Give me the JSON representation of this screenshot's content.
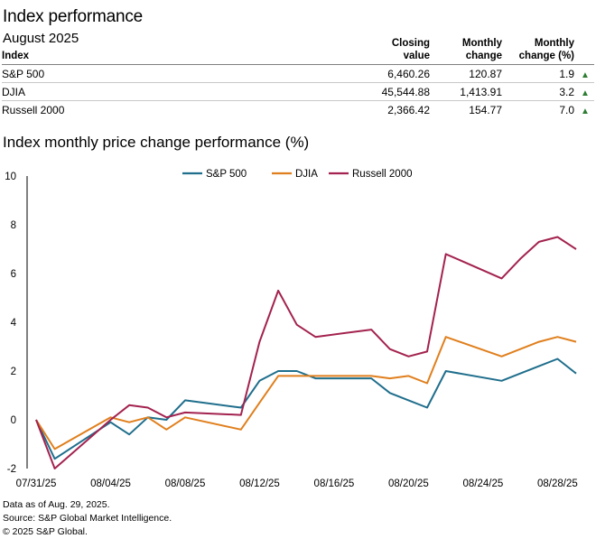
{
  "header": {
    "title": "Index performance",
    "subtitle": "August 2025"
  },
  "table": {
    "columns": [
      "Index",
      "Closing value",
      "Monthly change",
      "Monthly change (%)"
    ],
    "column_lines": [
      [
        "Index"
      ],
      [
        "Closing",
        "value"
      ],
      [
        "Monthly",
        "change"
      ],
      [
        "Monthly",
        "change (%)"
      ]
    ],
    "rows": [
      {
        "name": "S&P 500",
        "closing": "6,460.26",
        "change": "120.87",
        "pct": "1.9",
        "arrow": "▲"
      },
      {
        "name": "DJIA",
        "closing": "45,544.88",
        "change": "1,413.91",
        "pct": "3.2",
        "arrow": "▲"
      },
      {
        "name": "Russell 2000",
        "closing": "2,366.42",
        "change": "154.77",
        "pct": "7.0",
        "arrow": "▲"
      }
    ]
  },
  "chart_title": "Index monthly price change performance (%)",
  "chart_data": {
    "type": "line",
    "title": "Index monthly price change performance (%)",
    "x": [
      "2025-07-31",
      "2025-08-01",
      "2025-08-04",
      "2025-08-05",
      "2025-08-06",
      "2025-08-07",
      "2025-08-08",
      "2025-08-11",
      "2025-08-12",
      "2025-08-13",
      "2025-08-14",
      "2025-08-15",
      "2025-08-18",
      "2025-08-19",
      "2025-08-20",
      "2025-08-21",
      "2025-08-22",
      "2025-08-25",
      "2025-08-26",
      "2025-08-27",
      "2025-08-28",
      "2025-08-29"
    ],
    "x_ticks": [
      "07/31/25",
      "08/04/25",
      "08/08/25",
      "08/12/25",
      "08/16/25",
      "08/20/25",
      "08/24/25",
      "08/28/25"
    ],
    "ylim": [
      -2,
      10
    ],
    "y_ticks": [
      -2,
      0,
      2,
      4,
      6,
      8,
      10
    ],
    "legend_position": "top-center",
    "grid": false,
    "series": [
      {
        "name": "S&P 500",
        "color": "#1f6e8c",
        "values": [
          0.0,
          -1.6,
          -0.1,
          -0.6,
          0.1,
          0.0,
          0.8,
          0.5,
          1.6,
          2.0,
          2.0,
          1.7,
          1.7,
          1.1,
          0.8,
          0.5,
          2.0,
          1.6,
          1.9,
          2.2,
          2.5,
          1.9
        ]
      },
      {
        "name": "DJIA",
        "color": "#e07f1d",
        "values": [
          0.0,
          -1.2,
          0.1,
          -0.1,
          0.1,
          -0.4,
          0.1,
          -0.4,
          0.7,
          1.8,
          1.8,
          1.8,
          1.8,
          1.7,
          1.8,
          1.5,
          3.4,
          2.6,
          2.9,
          3.2,
          3.4,
          3.2
        ]
      },
      {
        "name": "Russell 2000",
        "color": "#a3224f",
        "values": [
          0.0,
          -2.0,
          0.0,
          0.6,
          0.5,
          0.1,
          0.3,
          0.2,
          3.2,
          5.3,
          3.9,
          3.4,
          3.7,
          2.9,
          2.6,
          2.8,
          6.8,
          5.8,
          6.6,
          7.3,
          7.5,
          7.0
        ]
      }
    ]
  },
  "footer": {
    "line1": "Data as of Aug. 29, 2025.",
    "line2": "Source: S&P Global Market Intelligence.",
    "line3": "© 2025 S&P Global."
  }
}
